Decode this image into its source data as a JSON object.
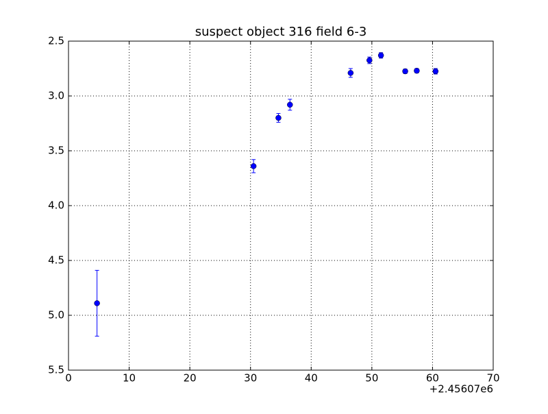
{
  "chart_data": {
    "type": "errorbar",
    "title": "suspect object 316 field 6-3",
    "x": [
      4.7,
      30.5,
      34.6,
      36.5,
      46.5,
      49.6,
      51.5,
      55.5,
      57.4,
      60.5
    ],
    "series": [
      {
        "color": "#0000ff",
        "values": [
          4.89,
          3.64,
          3.2,
          3.08,
          2.79,
          2.675,
          2.63,
          2.775,
          2.77,
          2.775
        ],
        "errors": [
          0.3,
          0.06,
          0.04,
          0.05,
          0.04,
          0.03,
          0.025,
          0.02,
          0.02,
          0.025
        ]
      }
    ],
    "xlim": [
      0,
      70
    ],
    "xticks": [
      0,
      10,
      20,
      30,
      40,
      50,
      60,
      70
    ],
    "x_offset_label": "+2.45607e6",
    "ylim": [
      5.5,
      2.5
    ],
    "yticks": [
      2.5,
      {
        "value": 3,
        "label": "3.0"
      },
      3.5,
      {
        "value": 4,
        "label": "4.0"
      },
      4.5,
      {
        "value": 5,
        "label": "5.0"
      },
      5.5
    ],
    "grid": true
  }
}
